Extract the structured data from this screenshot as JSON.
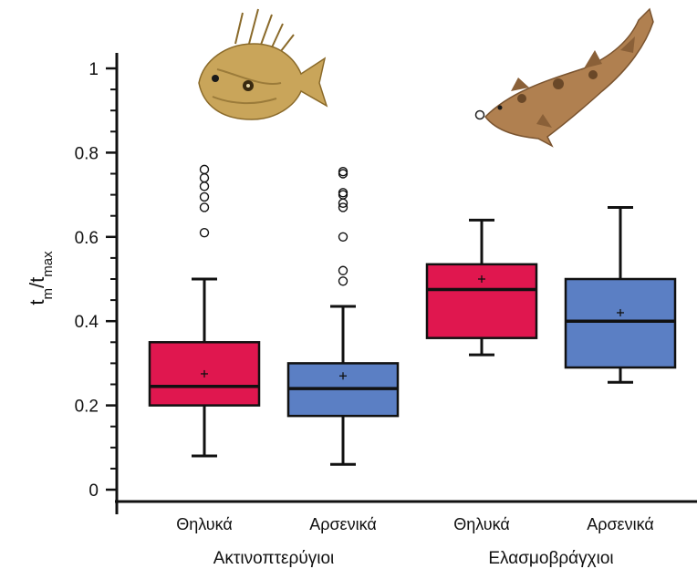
{
  "chart_data": {
    "type": "box",
    "ylabel": {
      "main": "t",
      "sub1": "m",
      "sep": "/t",
      "sub2": "max"
    },
    "ylim": [
      0,
      1
    ],
    "yticks": [
      "0",
      "0.2",
      "0.4",
      "0.6",
      "0.8",
      "1"
    ],
    "groups": [
      {
        "label": "Ακτινοπτερύγιοι",
        "categories": [
          "Θηλυκά",
          "Αρσενικά"
        ]
      },
      {
        "label": "Ελασμοβράγχιοι",
        "categories": [
          "Θηλυκά",
          "Αρσενικά"
        ]
      }
    ],
    "colors": {
      "female": "#e0174f",
      "male": "#5b7fc4"
    },
    "series": [
      {
        "group": 0,
        "category": "Θηλυκά",
        "color": "female",
        "whisker_low": 0.08,
        "q1": 0.2,
        "median": 0.245,
        "q3": 0.35,
        "whisker_high": 0.5,
        "mean": 0.275,
        "outliers": [
          0.61,
          0.67,
          0.695,
          0.72,
          0.74,
          0.76
        ]
      },
      {
        "group": 0,
        "category": "Αρσενικά",
        "color": "male",
        "whisker_low": 0.06,
        "q1": 0.175,
        "median": 0.24,
        "q3": 0.3,
        "whisker_high": 0.435,
        "mean": 0.27,
        "outliers": [
          0.495,
          0.52,
          0.6,
          0.67,
          0.68,
          0.7,
          0.705,
          0.75,
          0.755
        ]
      },
      {
        "group": 1,
        "category": "Θηλυκά",
        "color": "female",
        "whisker_low": 0.32,
        "q1": 0.36,
        "median": 0.475,
        "q3": 0.535,
        "whisker_high": 0.64,
        "mean": 0.5,
        "outliers": []
      },
      {
        "group": 1,
        "category": "Αρσενικά",
        "color": "male",
        "whisker_low": 0.255,
        "q1": 0.29,
        "median": 0.4,
        "q3": 0.5,
        "whisker_high": 0.67,
        "mean": 0.42,
        "outliers": []
      }
    ],
    "illustrations": [
      {
        "name": "john-dory-fish-illustration",
        "group": 0
      },
      {
        "name": "shark-illustration",
        "group": 1
      }
    ]
  }
}
